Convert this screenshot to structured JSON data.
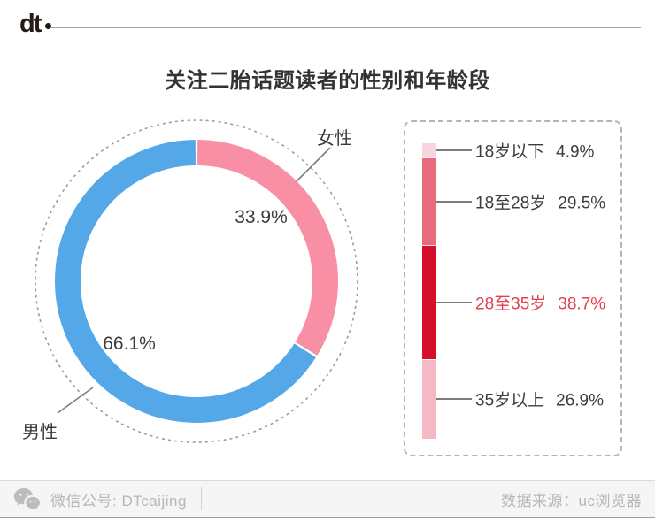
{
  "header": {
    "logo_text": "dt"
  },
  "chart_data": [
    {
      "type": "pie",
      "subtype": "donut",
      "title": "关注二胎话题读者的性别和年龄段",
      "labels": [
        "女性",
        "男性"
      ],
      "values": [
        33.9,
        66.1
      ],
      "display_values": [
        "33.9%",
        "66.1%"
      ],
      "colors": [
        "#f98fa4",
        "#55a8e8"
      ],
      "start_angle_deg": 0,
      "direction": "clockwise",
      "legend_position": "callout-labels",
      "outline": "dotted-circle"
    },
    {
      "type": "bar",
      "subtype": "vertical-stacked-100pct",
      "categories": [
        "18岁以下",
        "18至28岁",
        "28至35岁",
        "35岁以上"
      ],
      "values": [
        4.9,
        29.5,
        38.7,
        26.9
      ],
      "display_values": [
        "4.9%",
        "29.5%",
        "38.7%",
        "26.9%"
      ],
      "colors": [
        "#f7d5de",
        "#e56b7d",
        "#d50f29",
        "#f3b9c5"
      ],
      "highlight_index": 2,
      "highlight_color": "#e2404e",
      "total": 100,
      "frame": "dashed-rounded-rect"
    }
  ],
  "footer": {
    "icon": "wechat-icon",
    "account": "微信公号: DTcaijing",
    "source": "数据来源：uc浏览器"
  }
}
